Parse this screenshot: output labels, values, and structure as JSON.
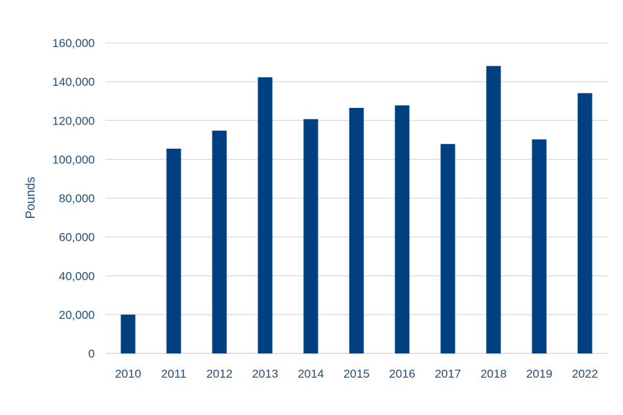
{
  "chart_data": {
    "type": "bar",
    "title": "",
    "xlabel": "",
    "ylabel": "Pounds",
    "categories": [
      "2010",
      "2011",
      "2012",
      "2013",
      "2014",
      "2015",
      "2016",
      "2017",
      "2018",
      "2019",
      "2022"
    ],
    "values": [
      20000,
      105500,
      114800,
      142300,
      120700,
      126500,
      127800,
      107900,
      148100,
      110300,
      134100
    ],
    "ylim": [
      0,
      160000
    ],
    "yticks": [
      0,
      20000,
      40000,
      60000,
      80000,
      100000,
      120000,
      140000,
      160000
    ],
    "ytick_labels": [
      "0",
      "20,000",
      "40,000",
      "60,000",
      "80,000",
      "100,000",
      "120,000",
      "140,000",
      "160,000"
    ],
    "grid": true,
    "legend": "none",
    "bar_color": "#004080"
  }
}
